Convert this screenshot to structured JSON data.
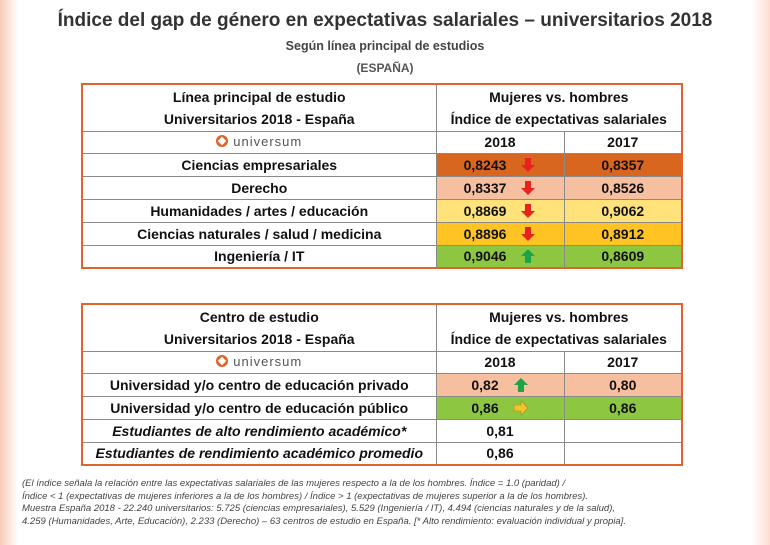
{
  "title": "Índice del gap de género en expectativas salariales – universitarios 2018",
  "subtitle": "Según línea principal  de estudios",
  "region": "(ESPAÑA)",
  "logo_text": "universum",
  "colors": {
    "border": "#E2642B",
    "dark_orange": "#D8661E",
    "salmon": "#F6BFA0",
    "light_yellow": "#FFE27A",
    "gold": "#FFC424",
    "green": "#8DC641",
    "arrow_red": "#E8231E",
    "arrow_green": "#1FA34A",
    "arrow_yellow": "#F4C430"
  },
  "table1": {
    "header_left_1": "Línea principal de estudio",
    "header_left_2": "Universitarios 2018 - España",
    "header_right_1": "Mujeres vs. hombres",
    "header_right_2": "Índice de expectativas salariales",
    "year_a": "2018",
    "year_b": "2017",
    "rows": [
      {
        "label": "Ciencias empresariales",
        "v2018": "0,8243",
        "v2017": "0,8357",
        "arrow": "down-red-icon"
      },
      {
        "label": "Derecho",
        "v2018": "0,8337",
        "v2017": "0,8526",
        "arrow": "down-red-icon"
      },
      {
        "label": "Humanidades / artes / educación",
        "v2018": "0,8869",
        "v2017": "0,9062",
        "arrow": "down-red-icon"
      },
      {
        "label": "Ciencias naturales / salud / medicina",
        "v2018": "0,8896",
        "v2017": "0,8912",
        "arrow": "down-red-icon"
      },
      {
        "label": "Ingeniería / IT",
        "v2018": "0,9046",
        "v2017": "0,8609",
        "arrow": "up-green-icon"
      }
    ]
  },
  "table2": {
    "header_left_1": "Centro de estudio",
    "header_left_2": "Universitarios 2018 - España",
    "header_right_1": "Mujeres vs. hombres",
    "header_right_2": "Índice de expectativas salariales",
    "year_a": "2018",
    "year_b": "2017",
    "rows": [
      {
        "label": "Universidad y/o centro de educación privado",
        "v2018": "0,82",
        "v2017": "0,80",
        "arrow": "up-green-icon"
      },
      {
        "label": "Universidad y/o centro de educación público",
        "v2018": "0,86",
        "v2017": "0,86",
        "arrow": "right-yellow-icon"
      },
      {
        "label": "Estudiantes de alto rendimiento académico*",
        "v2018": "0,81",
        "v2017": ""
      },
      {
        "label": "Estudiantes de rendimiento académico promedio",
        "v2018": "0,86",
        "v2017": ""
      }
    ]
  },
  "footnote": {
    "line1": "(El índice señala la relación entre las expectativas salariales de las mujeres respecto a la de los hombres. Índice = 1.0 (paridad) /",
    "line2": "Índice < 1 (expectativas de mujeres inferiores a la de los hombres) / Índice > 1 (expectativas de mujeres superior a la de los hombres).",
    "line3": "Muestra España 2018 - 22.240 universitarios: 5.725 (ciencias empresariales), 5.529 (Ingeniería / IT),  4.494 (ciencias naturales y de la salud),",
    "line4": "4.259 (Humanidades, Arte, Educación), 2.233 (Derecho) – 63 centros de estudio en España. [* Alto rendimiento: evaluación individual y propia]."
  }
}
